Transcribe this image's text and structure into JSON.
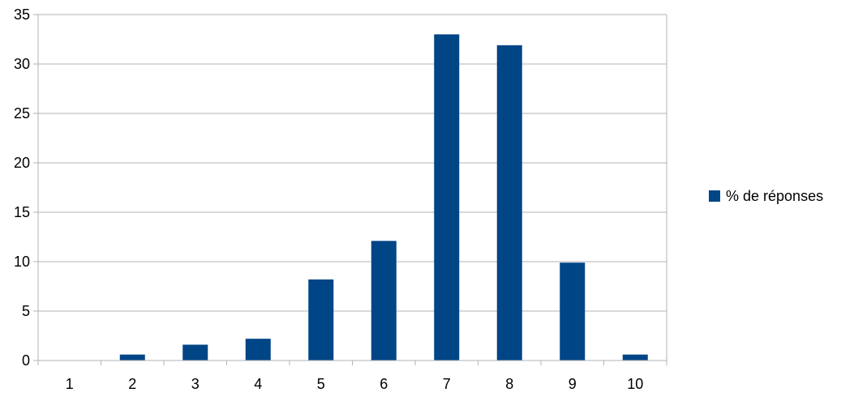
{
  "chart_data": {
    "type": "bar",
    "categories": [
      "1",
      "2",
      "3",
      "4",
      "5",
      "6",
      "7",
      "8",
      "9",
      "10"
    ],
    "series": [
      {
        "name": "% de réponses",
        "values": [
          0,
          0.6,
          1.6,
          2.2,
          8.2,
          12.1,
          33.0,
          31.9,
          9.9,
          0.6
        ],
        "color": "#004586"
      }
    ],
    "ylim": [
      0,
      35
    ],
    "yticks": [
      0,
      5,
      10,
      15,
      20,
      25,
      30,
      35
    ],
    "grid": true,
    "legend_position": "right"
  }
}
